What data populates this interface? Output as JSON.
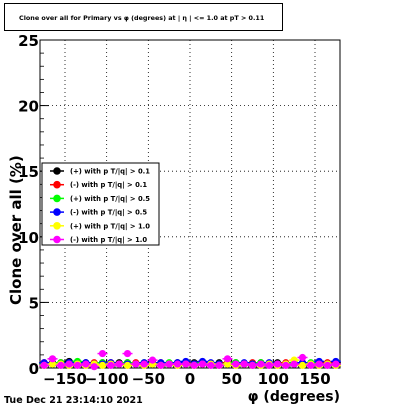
{
  "chart_data": {
    "type": "scatter",
    "title": "Clone  over all for Primary vs φ (degrees) at | η | <= 1.0 at pT > 0.11",
    "xlabel": "φ (degrees)",
    "ylabel": "Clone  over all (%)",
    "xlim": [
      -180,
      180
    ],
    "ylim": [
      0,
      25
    ],
    "x_ticks": [
      -150,
      -100,
      -50,
      0,
      50,
      100,
      150
    ],
    "x_tick_labels": [
      "−150",
      "−100",
      "−50",
      "0",
      "50",
      "100",
      "150"
    ],
    "y_ticks": [
      0,
      5,
      10,
      15,
      20,
      25
    ],
    "y_tick_labels": [
      "0",
      "5",
      "10",
      "15",
      "20",
      "25"
    ],
    "grid": true,
    "legend_position": "middle-left",
    "x": [
      -175,
      -165,
      -155,
      -145,
      -135,
      -125,
      -115,
      -105,
      -95,
      -85,
      -75,
      -65,
      -55,
      -45,
      -35,
      -25,
      -15,
      -5,
      5,
      15,
      25,
      35,
      45,
      55,
      65,
      75,
      85,
      95,
      105,
      115,
      125,
      135,
      145,
      155,
      165,
      175
    ],
    "series": [
      {
        "name": "(+) with p T/|q| > 0.1",
        "color": "#000000",
        "values": [
          0.3,
          0.4,
          0.3,
          0.5,
          0.3,
          0.4,
          0.3,
          0.4,
          0.3,
          0.4,
          0.4,
          0.3,
          0.3,
          0.4,
          0.3,
          0.3,
          0.4,
          0.3,
          0.4,
          0.3,
          0.3,
          0.4,
          0.3,
          0.4,
          0.3,
          0.3,
          0.4,
          0.3,
          0.4,
          0.3,
          0.4,
          0.3,
          0.3,
          0.4,
          0.3,
          0.4
        ]
      },
      {
        "name": "(-) with p T/|q| > 0.1",
        "color": "#ff0000",
        "values": [
          0.4,
          0.3,
          0.4,
          0.3,
          0.4,
          0.3,
          0.4,
          0.3,
          0.4,
          0.3,
          0.3,
          0.4,
          0.3,
          0.3,
          0.4,
          0.3,
          0.3,
          0.4,
          0.3,
          0.4,
          0.3,
          0.3,
          0.4,
          0.3,
          0.3,
          0.4,
          0.3,
          0.3,
          0.3,
          0.4,
          0.3,
          0.4,
          0.3,
          0.3,
          0.4,
          0.3
        ]
      },
      {
        "name": "(+) with p T/|q| > 0.5",
        "color": "#00ff00",
        "values": [
          0.3,
          0.3,
          0.4,
          0.3,
          0.5,
          0.3,
          0.3,
          0.4,
          0.3,
          0.3,
          0.4,
          0.3,
          0.4,
          0.3,
          0.3,
          0.4,
          0.3,
          0.3,
          0.3,
          0.4,
          0.3,
          0.3,
          0.3,
          0.4,
          0.3,
          0.3,
          0.4,
          0.3,
          0.3,
          0.3,
          0.4,
          0.3,
          0.4,
          0.3,
          0.3,
          0.3
        ]
      },
      {
        "name": "(-) with p T/|q| > 0.5",
        "color": "#0000ff",
        "values": [
          0.4,
          0.3,
          0.3,
          0.4,
          0.3,
          0.4,
          0.3,
          0.3,
          0.4,
          0.3,
          0.3,
          0.3,
          0.4,
          0.3,
          0.4,
          0.3,
          0.4,
          0.5,
          0.3,
          0.5,
          0.4,
          0.3,
          0.3,
          0.3,
          0.4,
          0.3,
          0.3,
          0.4,
          0.3,
          0.3,
          0.3,
          0.4,
          0.3,
          0.5,
          0.3,
          0.5
        ]
      },
      {
        "name": "(+) with p T/|q| > 1.0",
        "color": "#ffff00",
        "values": [
          0.2,
          0.3,
          0.3,
          0.2,
          0.3,
          0.2,
          0.3,
          0.2,
          0.3,
          0.3,
          0.2,
          0.3,
          0.2,
          0.3,
          0.2,
          0.3,
          0.2,
          0.3,
          0.2,
          0.3,
          0.3,
          0.2,
          0.3,
          0.2,
          0.3,
          0.2,
          0.2,
          0.3,
          0.2,
          0.3,
          0.6,
          0.2,
          0.3,
          0.2,
          0.3,
          0.2
        ]
      },
      {
        "name": "(-) with p T/|q| > 1.0",
        "color": "#ff00ff",
        "values": [
          0.2,
          0.7,
          0.2,
          0.3,
          0.2,
          0.3,
          0.1,
          1.1,
          0.2,
          0.3,
          1.1,
          0.3,
          0.3,
          0.6,
          0.2,
          0.3,
          0.3,
          0.3,
          0.2,
          0.3,
          0.2,
          0.2,
          0.7,
          0.3,
          0.3,
          0.2,
          0.3,
          0.2,
          0.3,
          0.2,
          0.3,
          0.8,
          0.2,
          0.3,
          0.2,
          0.3
        ]
      }
    ]
  },
  "timestamp": "Tue Dec 21 23:14:10 2021"
}
